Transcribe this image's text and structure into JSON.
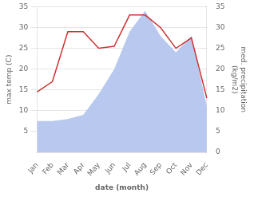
{
  "chart_data": {
    "type": "line",
    "xlabel": "date (month)",
    "ylabel": "max temp (C)",
    "y2label": "med. precipitation\n(kg/m2)",
    "categories": [
      "Jan",
      "Feb",
      "Mar",
      "Apr",
      "May",
      "Jun",
      "Jul",
      "Aug",
      "Sep",
      "Oct",
      "Nov",
      "Dec"
    ],
    "series": [
      {
        "type": "area",
        "axis": "y2",
        "color": "#b8c8ee",
        "values": [
          7.5,
          7.5,
          8.0,
          9.0,
          14.0,
          20.0,
          29.0,
          34.0,
          28.0,
          24.0,
          28.0,
          11.0
        ]
      },
      {
        "type": "line",
        "color": "#cc3333",
        "values": [
          14.5,
          17.0,
          29.0,
          29.0,
          25.0,
          25.5,
          33.0,
          33.0,
          30.0,
          25.0,
          27.5,
          13.0
        ]
      }
    ],
    "ylim": [
      0,
      35
    ],
    "yticks": [
      5,
      10,
      15,
      20,
      25,
      30,
      35
    ],
    "y2lim": [
      0,
      35
    ],
    "y2ticks": [
      0,
      5,
      10,
      15,
      20,
      25,
      30,
      35
    ],
    "grid": true
  }
}
